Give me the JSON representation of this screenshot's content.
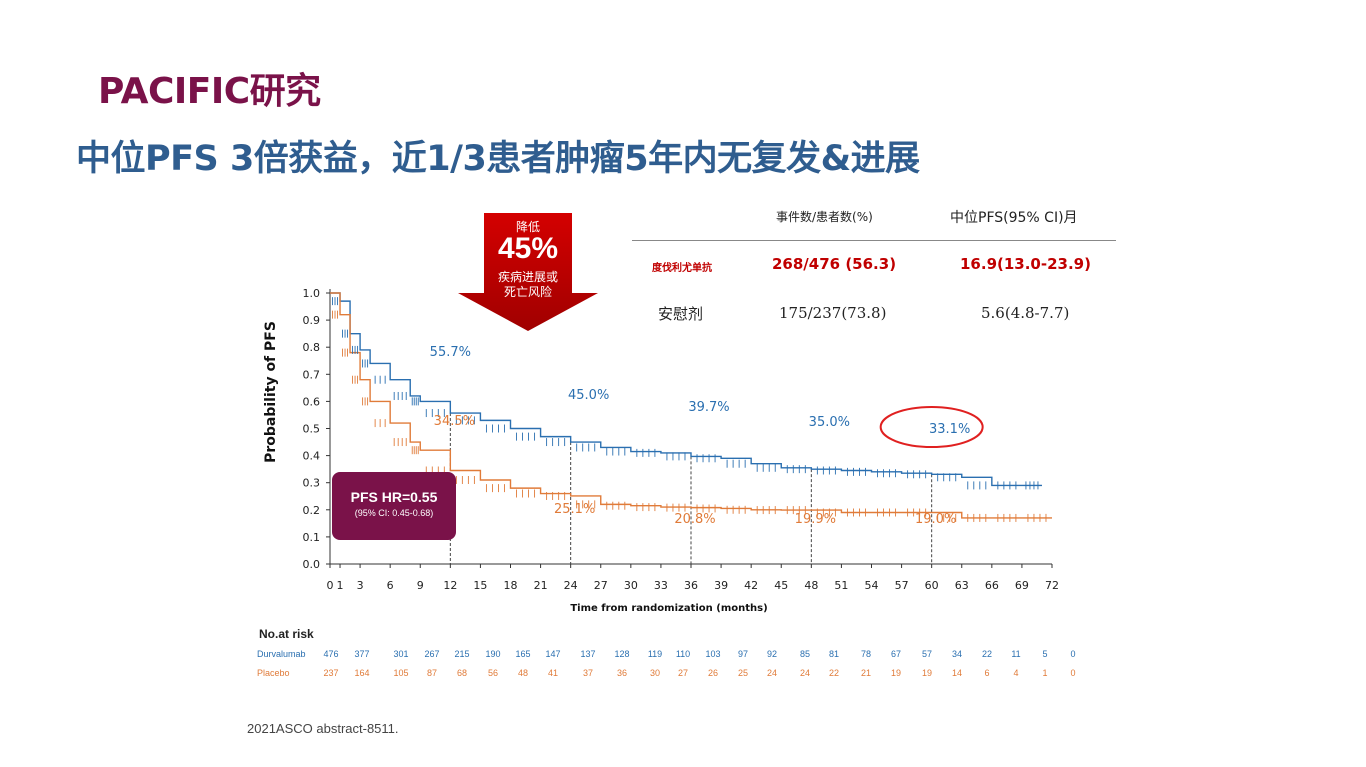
{
  "header": {
    "title": "PACIFIC研究",
    "subtitle": "中位PFS 3倍获益，近1/3患者肿瘤5年内无复发&进展"
  },
  "callout": {
    "line1": "降低",
    "value": "45%",
    "line2": "疾病进展或",
    "line3": "死亡风险",
    "color": "#c00000"
  },
  "summary_table": {
    "col_events": "事件数/患者数(%)",
    "col_median": "中位PFS(95% CI)月",
    "rows": [
      {
        "arm": "度伐利尤单抗",
        "events": "268/476 (56.3)",
        "median": "16.9(13.0-23.9)"
      },
      {
        "arm": "安慰剂",
        "events": "175/237(73.8)",
        "median": "5.6(4.8-7.7)"
      }
    ]
  },
  "hr_box": {
    "label": "PFS HR=0.55",
    "ci": "(95% CI: 0.45-0.68)",
    "color": "#7a1249"
  },
  "risk_table": {
    "heading": "No.at risk",
    "rows": [
      {
        "name": "Durvalumab",
        "color": "#2a6fb0",
        "values": [
          "476",
          "377",
          "301",
          "267",
          "215",
          "190",
          "165",
          "147",
          "137",
          "128",
          "119",
          "110",
          "103",
          "97",
          "92",
          "85",
          "81",
          "78",
          "67",
          "57",
          "34",
          "22",
          "11",
          "5",
          "0"
        ]
      },
      {
        "name": "Placebo",
        "color": "#e07b39",
        "values": [
          "237",
          "164",
          "105",
          "87",
          "68",
          "56",
          "48",
          "41",
          "37",
          "36",
          "30",
          "27",
          "26",
          "25",
          "24",
          "24",
          "22",
          "21",
          "19",
          "19",
          "14",
          "6",
          "4",
          "1",
          "0"
        ]
      }
    ]
  },
  "footer": "2021ASCO abstract-8511.",
  "chart_data": {
    "type": "line",
    "title": "",
    "xlabel": "Time from randomization  (months)",
    "ylabel": "Probability of PFS",
    "xlim": [
      0,
      72
    ],
    "ylim": [
      0,
      1.0
    ],
    "x_ticks": [
      "0",
      "1",
      "3",
      "6",
      "9",
      "12",
      "15",
      "18",
      "21",
      "24",
      "27",
      "30",
      "33",
      "36",
      "39",
      "42",
      "45",
      "48",
      "51",
      "54",
      "57",
      "60",
      "63",
      "66",
      "69",
      "72"
    ],
    "y_ticks": [
      "0.0",
      "0.1",
      "0.2",
      "0.3",
      "0.4",
      "0.5",
      "0.6",
      "0.7",
      "0.8",
      "0.9",
      "1.0"
    ],
    "grid": false,
    "series": [
      {
        "name": "Durvalumab",
        "color": "#2a6fb0",
        "x": [
          0,
          1,
          2,
          3,
          4,
          6,
          8,
          9,
          12,
          15,
          18,
          21,
          24,
          27,
          30,
          33,
          36,
          39,
          42,
          45,
          48,
          51,
          54,
          57,
          60,
          63,
          66,
          69,
          71
        ],
        "y": [
          1.0,
          0.97,
          0.85,
          0.79,
          0.74,
          0.68,
          0.62,
          0.6,
          0.557,
          0.53,
          0.5,
          0.47,
          0.45,
          0.43,
          0.415,
          0.41,
          0.397,
          0.39,
          0.37,
          0.355,
          0.35,
          0.345,
          0.34,
          0.335,
          0.331,
          0.32,
          0.29,
          0.29,
          0.29
        ]
      },
      {
        "name": "Placebo",
        "color": "#e07b39",
        "x": [
          0,
          1,
          2,
          3,
          4,
          6,
          8,
          9,
          12,
          15,
          18,
          21,
          24,
          27,
          30,
          33,
          36,
          39,
          42,
          45,
          48,
          51,
          54,
          57,
          60,
          63,
          66,
          69,
          72
        ],
        "y": [
          1.0,
          0.92,
          0.78,
          0.68,
          0.6,
          0.52,
          0.45,
          0.42,
          0.345,
          0.31,
          0.28,
          0.26,
          0.251,
          0.22,
          0.215,
          0.21,
          0.208,
          0.205,
          0.2,
          0.199,
          0.199,
          0.19,
          0.19,
          0.19,
          0.19,
          0.17,
          0.17,
          0.17,
          0.17
        ]
      }
    ],
    "landmarks": [
      {
        "month": 12,
        "durvalumab": "55.7%",
        "placebo": "34.5%"
      },
      {
        "month": 24,
        "durvalumab": "45.0%",
        "placebo": "25.1%"
      },
      {
        "month": 36,
        "durvalumab": "39.7%",
        "placebo": "20.8%"
      },
      {
        "month": 48,
        "durvalumab": "35.0%",
        "placebo": "19.9%"
      },
      {
        "month": 60,
        "durvalumab": "33.1%",
        "placebo": "19.0%"
      }
    ],
    "highlight": {
      "month": 60,
      "label": "33.1%",
      "color": "#e02020"
    }
  }
}
